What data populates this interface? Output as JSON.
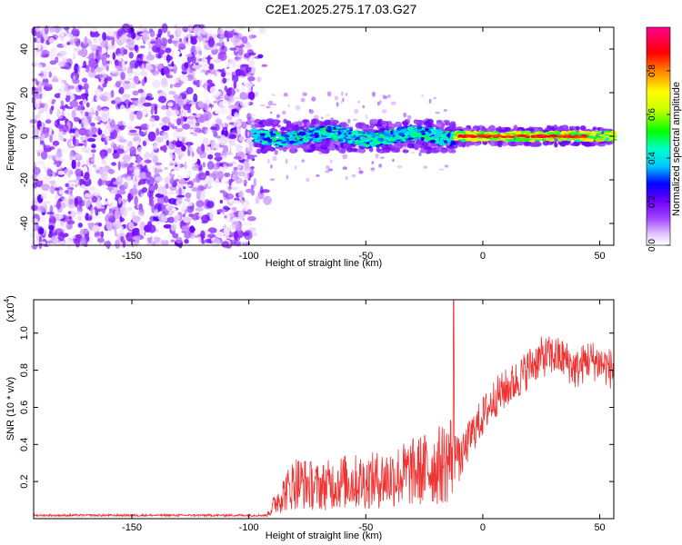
{
  "title": "C2E1.2025.275.17.03.G27",
  "chart_data": [
    {
      "type": "heatmap",
      "name": "spectrogram",
      "xlabel": "Height of straight line (km)",
      "ylabel": "Frequency (Hz)",
      "xlim": [
        -192,
        56
      ],
      "ylim": [
        -50,
        50
      ],
      "xticks": [
        -150,
        -100,
        -50,
        0,
        50
      ],
      "yticks": [
        -40,
        -20,
        0,
        20,
        40
      ],
      "colorbar": {
        "label": "Normalized spectral amplitude",
        "range": [
          0,
          1
        ],
        "ticks": [
          "0.0",
          "0.2",
          "0.4",
          "0.6",
          "0.8"
        ],
        "colors": [
          "#ffffff",
          "#e0c0ff",
          "#9b30ff",
          "#6a00ff",
          "#0000ff",
          "#00c8ff",
          "#00ffc8",
          "#00ff00",
          "#c8ff00",
          "#ffff00",
          "#ff8000",
          "#ff0000",
          "#ff0090"
        ]
      },
      "regions": [
        {
          "x_range": [
            -192,
            -98
          ],
          "freq_range": [
            -50,
            50
          ],
          "amplitude": "0.0-0.2",
          "pattern": "broadband scattered noise"
        },
        {
          "x_range": [
            -98,
            -12
          ],
          "center_freq": 0,
          "half_width_hz": 3,
          "amplitude": "0.2-0.5",
          "pattern": "narrow band near 0 Hz"
        },
        {
          "x_range": [
            -12,
            56
          ],
          "center_freq": 0,
          "half_width_hz": 2,
          "amplitude": "0.5-0.9",
          "pattern": "strong tone at 0 Hz"
        }
      ]
    },
    {
      "type": "line",
      "name": "snr",
      "xlabel": "Height of straight line (km)",
      "ylabel": "SNR (10 * v/v)",
      "y_scale_label": "(x10",
      "y_scale_exp": "4",
      "xlim": [
        -192,
        56
      ],
      "ylim": [
        0,
        1.18
      ],
      "xticks": [
        -150,
        -100,
        -50,
        0,
        50
      ],
      "yticks": [
        "0.2",
        "0.4",
        "0.6",
        "0.8",
        "1.0"
      ],
      "color": "#ee3333",
      "series": [
        {
          "name": "SNR",
          "x": [
            -192,
            -150,
            -100,
            -92,
            -88,
            -80,
            -70,
            -60,
            -50,
            -40,
            -30,
            -20,
            -14,
            -12,
            -10,
            -5,
            0,
            5,
            10,
            15,
            20,
            25,
            30,
            35,
            40,
            45,
            50,
            56
          ],
          "y": [
            0.01,
            0.01,
            0.01,
            0.02,
            0.1,
            0.2,
            0.17,
            0.2,
            0.2,
            0.22,
            0.25,
            0.28,
            0.32,
            0.45,
            0.3,
            0.45,
            0.55,
            0.65,
            0.7,
            0.75,
            0.82,
            0.87,
            0.88,
            0.86,
            0.8,
            0.86,
            0.84,
            0.8
          ]
        }
      ]
    }
  ]
}
